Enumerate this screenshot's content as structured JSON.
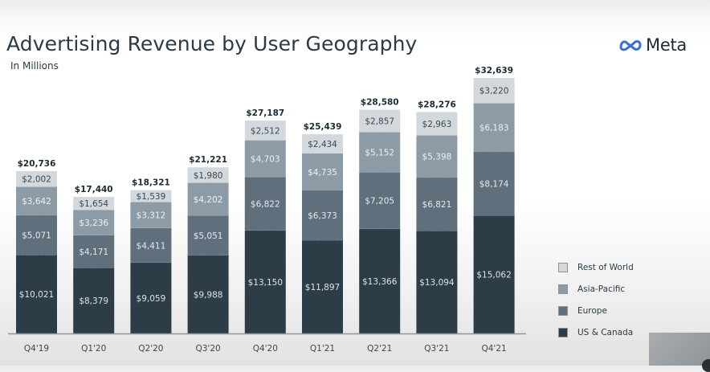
{
  "header": {
    "title": "Advertising Revenue by User Geography",
    "subtitle": "In Millions",
    "logo_text": "Meta",
    "logo_icon": "meta-infinity-icon"
  },
  "colors": {
    "rest_of_world": "#d3d8dc",
    "asia_pacific": "#8c9ba6",
    "europe": "#5f6f7b",
    "us_canada": "#2d3d48",
    "logo_blue": "#3b6fd6"
  },
  "legend": {
    "items": [
      {
        "label": "Rest of World",
        "color_key": "rest_of_world"
      },
      {
        "label": "Asia-Pacific",
        "color_key": "asia_pacific"
      },
      {
        "label": "Europe",
        "color_key": "europe"
      },
      {
        "label": "US & Canada",
        "color_key": "us_canada"
      }
    ],
    "placement": "right"
  },
  "chart_data": {
    "type": "bar",
    "stacked": true,
    "title": "Advertising Revenue by User Geography",
    "subtitle": "In Millions",
    "xlabel": "",
    "ylabel": "",
    "ylim": [
      0,
      33000
    ],
    "grid": false,
    "categories": [
      "Q4'19",
      "Q1'20",
      "Q2'20",
      "Q3'20",
      "Q4'20",
      "Q1'21",
      "Q2'21",
      "Q3'21",
      "Q4'21"
    ],
    "series": [
      {
        "name": "US & Canada",
        "color_key": "us_canada",
        "values": [
          10021,
          8379,
          9059,
          9988,
          13150,
          11897,
          13366,
          13094,
          15062
        ],
        "labels": [
          "$10,021",
          "$8,379",
          "$9,059",
          "$9,988",
          "$13,150",
          "$11,897",
          "$13,366",
          "$13,094",
          "$15,062"
        ]
      },
      {
        "name": "Europe",
        "color_key": "europe",
        "values": [
          5071,
          4171,
          4411,
          5051,
          6822,
          6373,
          7205,
          6821,
          8174
        ],
        "labels": [
          "$5,071",
          "$4,171",
          "$4,411",
          "$5,051",
          "$6,822",
          "$6,373",
          "$7,205",
          "$6,821",
          "$8,174"
        ]
      },
      {
        "name": "Asia-Pacific",
        "color_key": "asia_pacific",
        "values": [
          3642,
          3236,
          3312,
          4202,
          4703,
          4735,
          5152,
          5398,
          6183
        ],
        "labels": [
          "$3,642",
          "$3,236",
          "$3,312",
          "$4,202",
          "$4,703",
          "$4,735",
          "$5,152",
          "$5,398",
          "$6,183"
        ]
      },
      {
        "name": "Rest of World",
        "color_key": "rest_of_world",
        "values": [
          2002,
          1654,
          1539,
          1980,
          2512,
          2434,
          2857,
          2963,
          3220
        ],
        "labels": [
          "$2,002",
          "$1,654",
          "$1,539",
          "$1,980",
          "$2,512",
          "$2,434",
          "$2,857",
          "$2,963",
          "$3,220"
        ]
      }
    ],
    "totals": [
      20736,
      17440,
      18321,
      21221,
      27187,
      25439,
      28580,
      28276,
      32639
    ],
    "total_labels": [
      "$20,736",
      "$17,440",
      "$18,321",
      "$21,221",
      "$27,187",
      "$25,439",
      "$28,580",
      "$28,276",
      "$32,639"
    ]
  }
}
